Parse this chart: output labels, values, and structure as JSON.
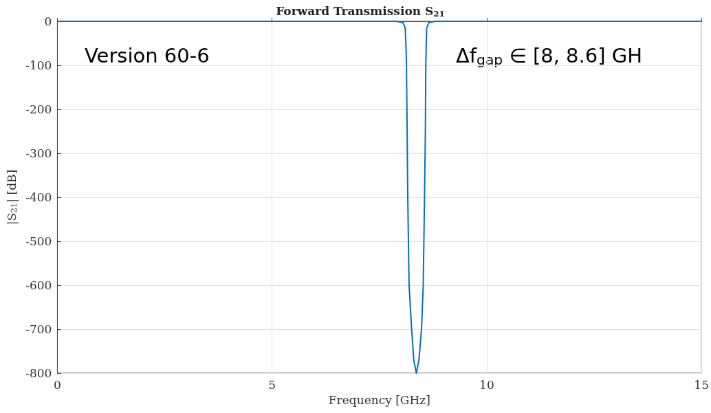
{
  "chart_data": {
    "type": "line",
    "title": "Forward Transmission S$_{21}$",
    "xlabel": "Frequency [GHz]",
    "ylabel": "|S$_{21}$| [dB]",
    "annotations": [
      "Version 60-6",
      "Δf$_{gap}$ ∈ [8, 8.6] GH"
    ],
    "series": [
      {
        "color": "#0072bd",
        "x": [
          0,
          7.9,
          8.05,
          8.1,
          8.12,
          8.13,
          8.15,
          8.16,
          8.19,
          8.25,
          8.3,
          8.36,
          8.42,
          8.48,
          8.52,
          8.55,
          8.57,
          8.58,
          8.59,
          8.6,
          8.65,
          8.8,
          15
        ],
        "values": [
          0,
          0,
          -3,
          -15,
          -60,
          -100,
          -300,
          -400,
          -600,
          -700,
          -770,
          -800,
          -770,
          -700,
          -600,
          -400,
          -250,
          -100,
          -50,
          -15,
          -3,
          0,
          0
        ]
      }
    ],
    "xlim": [
      0,
      15
    ],
    "xticks": [
      0,
      5,
      10,
      15
    ],
    "ylim": [
      -800,
      0
    ],
    "yticks": [
      -800,
      -700,
      -600,
      -500,
      -400,
      -300,
      -200,
      -100,
      0
    ],
    "grid": true,
    "marker": "none",
    "line_style": "solid"
  }
}
